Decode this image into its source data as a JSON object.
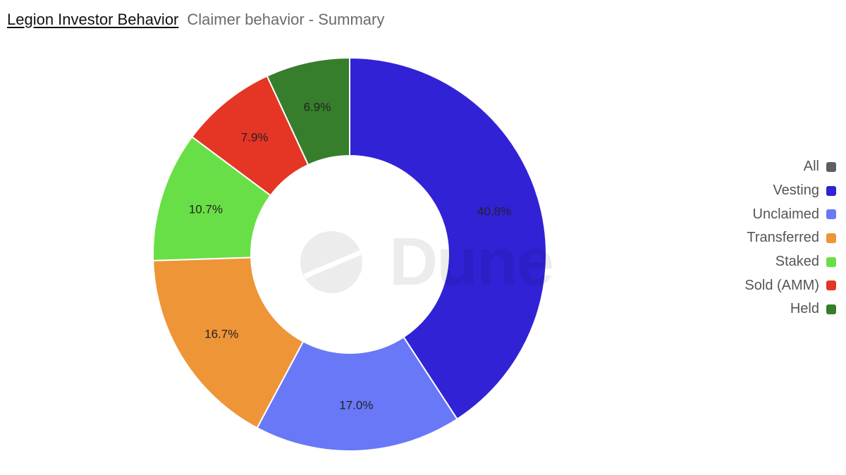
{
  "header": {
    "title": "Legion Investor Behavior",
    "subtitle": "Claimer behavior - Summary"
  },
  "watermark": {
    "text": "Dune"
  },
  "legend": [
    {
      "label": "All",
      "color": "#5f5f5f"
    },
    {
      "label": "Vesting",
      "color": "#3122d6"
    },
    {
      "label": "Unclaimed",
      "color": "#6878f6"
    },
    {
      "label": "Transferred",
      "color": "#ee9537"
    },
    {
      "label": "Staked",
      "color": "#69df47"
    },
    {
      "label": "Sold (AMM)",
      "color": "#e53525"
    },
    {
      "label": "Held",
      "color": "#367e2b"
    }
  ],
  "chart_data": {
    "type": "pie",
    "donut": true,
    "start": "top",
    "direction": "clockwise",
    "labels": [
      "Vesting",
      "Unclaimed",
      "Transferred",
      "Staked",
      "Sold (AMM)",
      "Held"
    ],
    "values": [
      40.8,
      17.0,
      16.7,
      10.7,
      7.9,
      6.9
    ],
    "value_labels": [
      "40.8%",
      "17.0%",
      "16.7%",
      "10.7%",
      "7.9%",
      "6.9%"
    ],
    "colors": [
      "#3122d6",
      "#6878f6",
      "#ee9537",
      "#69df47",
      "#e53525",
      "#367e2b"
    ],
    "legend_position": "right"
  }
}
